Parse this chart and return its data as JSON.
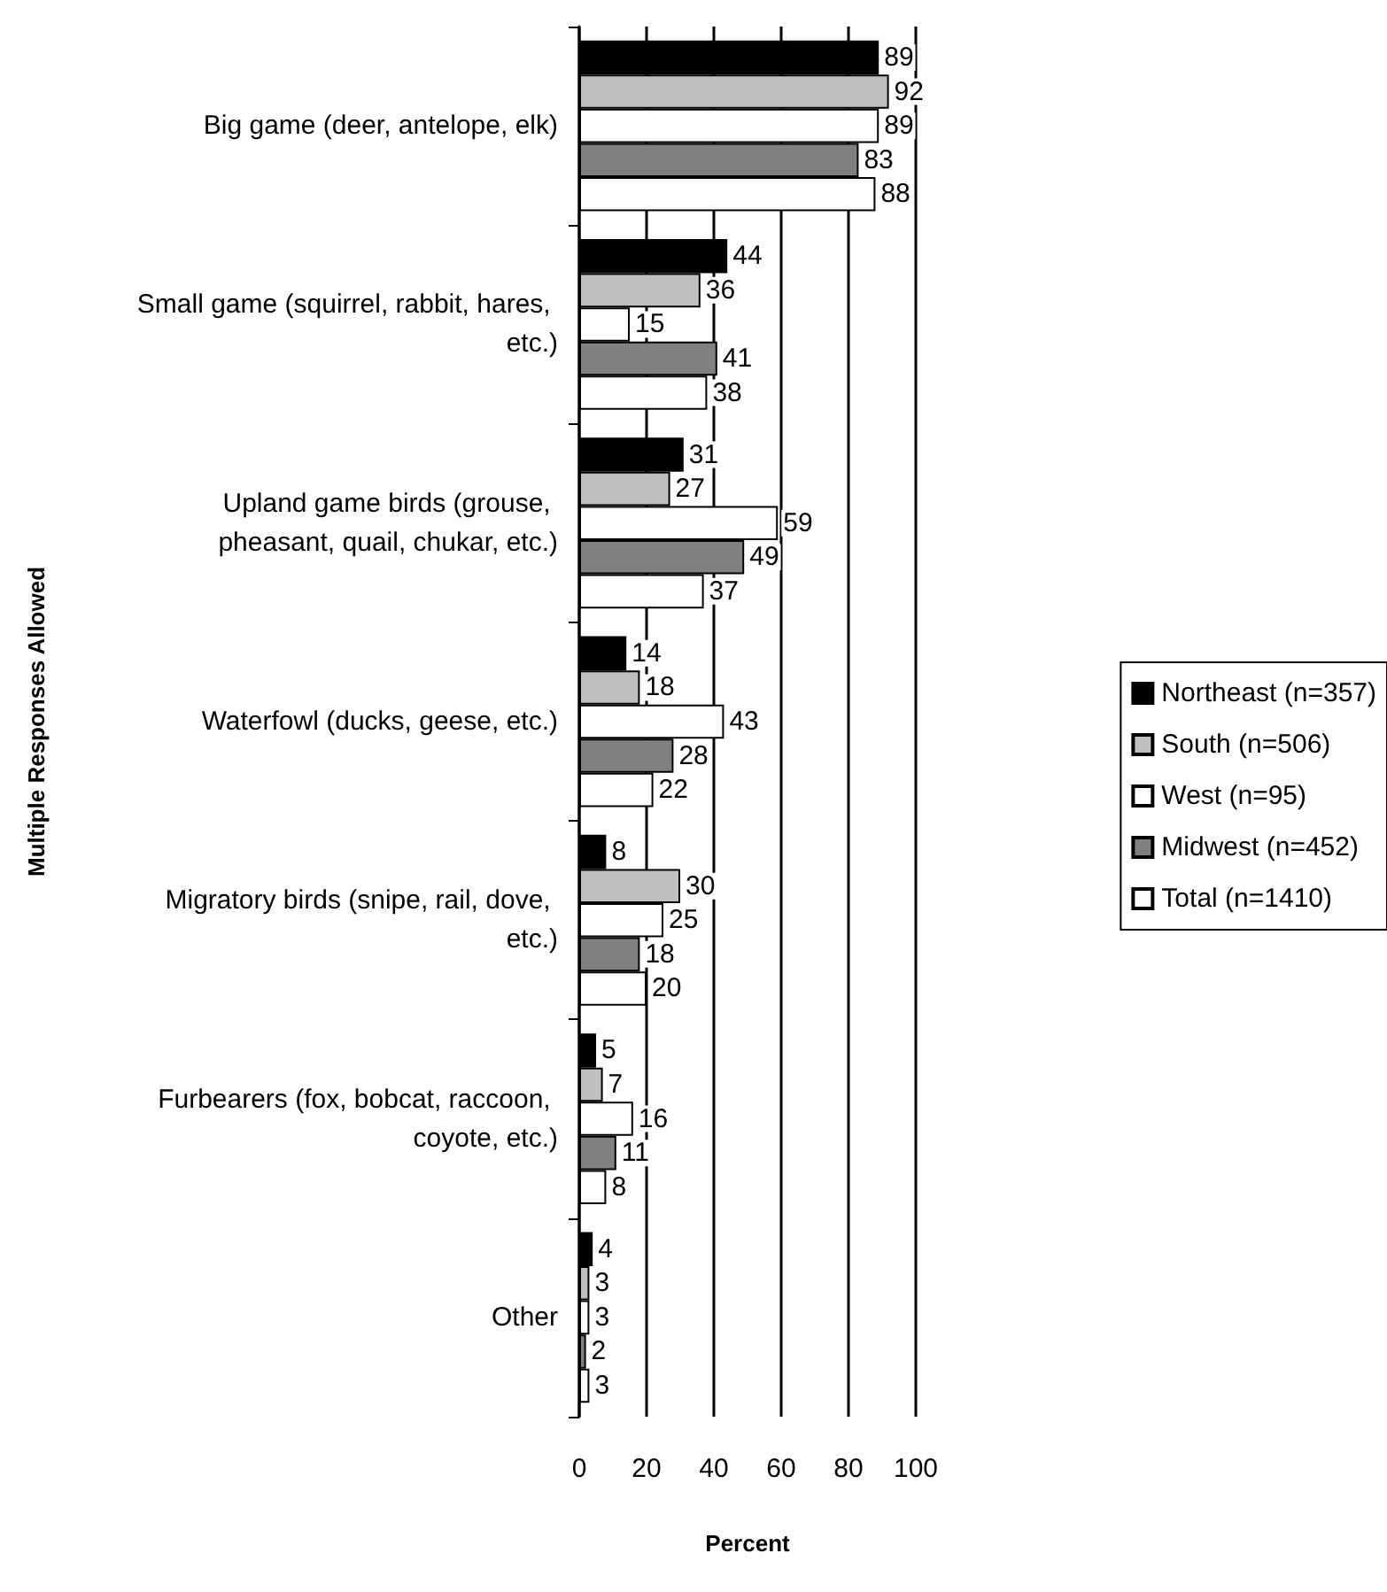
{
  "chart_data": {
    "type": "bar",
    "orientation": "horizontal",
    "xlabel": "Percent",
    "ylabel": "Multiple Responses Allowed",
    "categories": [
      "Big game (deer, antelope, elk)",
      "Small game (squirrel, rabbit, hares, etc.)",
      "Upland game birds (grouse, pheasant, quail, chukar, etc.)",
      "Waterfowl (ducks, geese, etc.)",
      "Migratory birds (snipe, rail, dove, etc.)",
      "Furbearers (fox, bobcat, raccoon, coyote, etc.)",
      "Other"
    ],
    "series": [
      {
        "name": "Northeast (n=357)",
        "color": "#000000",
        "values": [
          89,
          44,
          31,
          14,
          8,
          5,
          4
        ]
      },
      {
        "name": "South (n=506)",
        "color": "#c0c0c0",
        "values": [
          92,
          36,
          27,
          18,
          30,
          7,
          3
        ]
      },
      {
        "name": "West (n=95)",
        "color": "#ffffff",
        "values": [
          89,
          15,
          59,
          43,
          25,
          16,
          3
        ]
      },
      {
        "name": "Midwest (n=452)",
        "color": "#808080",
        "values": [
          83,
          41,
          49,
          28,
          18,
          11,
          2
        ]
      },
      {
        "name": "Total (n=1410)",
        "color": "#ffffff",
        "values": [
          88,
          38,
          37,
          22,
          20,
          8,
          3
        ]
      }
    ],
    "xlim": [
      0,
      100
    ],
    "xticks": [
      0,
      20,
      40,
      60,
      80,
      100
    ],
    "grid": "x",
    "legend": "right",
    "data_labels": true
  }
}
